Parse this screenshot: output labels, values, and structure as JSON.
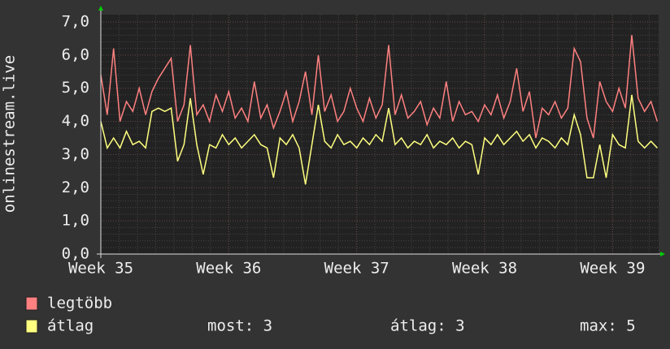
{
  "chart_data": {
    "type": "line",
    "y_label": "onlinestream.live",
    "x": [
      35,
      35.05,
      35.1,
      35.15,
      35.2,
      35.25,
      35.3,
      35.35,
      35.4,
      35.45,
      35.5,
      35.55,
      35.6,
      35.65,
      35.7,
      35.75,
      35.8,
      35.85,
      35.9,
      35.95,
      36,
      36.05,
      36.1,
      36.15,
      36.2,
      36.25,
      36.3,
      36.35,
      36.4,
      36.45,
      36.5,
      36.55,
      36.6,
      36.65,
      36.7,
      36.75,
      36.8,
      36.85,
      36.9,
      36.95,
      37,
      37.05,
      37.1,
      37.15,
      37.2,
      37.25,
      37.3,
      37.35,
      37.4,
      37.45,
      37.5,
      37.55,
      37.6,
      37.65,
      37.7,
      37.75,
      37.8,
      37.85,
      37.9,
      37.95,
      38,
      38.05,
      38.1,
      38.15,
      38.2,
      38.25,
      38.3,
      38.35,
      38.4,
      38.45,
      38.5,
      38.55,
      38.6,
      38.65,
      38.7,
      38.75,
      38.8,
      38.85,
      38.9,
      38.95,
      39,
      39.05,
      39.1,
      39.15,
      39.2,
      39.25,
      39.3,
      39.35
    ],
    "series": [
      {
        "name": "legtöbb",
        "color": "#ff8080",
        "values": [
          5.4,
          4.2,
          6.2,
          4.0,
          4.6,
          4.3,
          5.0,
          4.2,
          4.9,
          5.3,
          5.6,
          5.9,
          4.0,
          4.5,
          6.3,
          4.2,
          4.5,
          4.0,
          4.8,
          4.3,
          4.9,
          4.1,
          4.4,
          4.0,
          5.2,
          4.1,
          4.5,
          3.8,
          4.3,
          4.9,
          4.0,
          4.6,
          5.5,
          4.2,
          6.0,
          4.3,
          4.8,
          4.0,
          4.3,
          5.0,
          4.4,
          4.0,
          4.7,
          4.1,
          4.5,
          6.3,
          4.2,
          4.8,
          4.1,
          4.3,
          4.6,
          3.9,
          4.4,
          4.1,
          5.2,
          4.0,
          4.6,
          4.2,
          4.3,
          4.0,
          4.5,
          4.2,
          4.8,
          4.1,
          4.6,
          5.6,
          4.3,
          4.9,
          3.5,
          4.4,
          4.2,
          4.6,
          4.1,
          4.4,
          6.2,
          5.8,
          4.1,
          3.5,
          5.2,
          4.6,
          4.3,
          5.0,
          4.4,
          6.6,
          4.7,
          4.3,
          4.6,
          4.0
        ]
      },
      {
        "name": "átlag",
        "color": "#ffff80",
        "values": [
          4.0,
          3.2,
          3.5,
          3.2,
          3.7,
          3.3,
          3.4,
          3.2,
          4.3,
          4.4,
          4.3,
          4.4,
          2.8,
          3.3,
          4.7,
          3.3,
          2.4,
          3.3,
          3.2,
          3.6,
          3.3,
          3.5,
          3.2,
          3.4,
          3.6,
          3.3,
          3.2,
          2.3,
          3.5,
          3.3,
          3.6,
          3.2,
          2.1,
          3.3,
          4.5,
          3.4,
          3.2,
          3.6,
          3.3,
          3.4,
          3.2,
          3.5,
          3.3,
          3.6,
          3.4,
          4.4,
          3.3,
          3.5,
          3.2,
          3.4,
          3.3,
          3.6,
          3.2,
          3.4,
          3.3,
          3.5,
          3.2,
          3.4,
          3.3,
          2.4,
          3.5,
          3.3,
          3.6,
          3.3,
          3.5,
          3.7,
          3.4,
          3.6,
          3.2,
          3.5,
          3.4,
          3.2,
          3.5,
          3.3,
          4.2,
          3.6,
          2.3,
          2.3,
          3.3,
          2.3,
          3.6,
          3.3,
          3.2,
          4.8,
          3.4,
          3.2,
          3.4,
          3.2
        ]
      }
    ],
    "xlim": [
      35,
      39.36
    ],
    "xticks": [
      {
        "value": 35,
        "label": "Week 35"
      },
      {
        "value": 36,
        "label": "Week 36"
      },
      {
        "value": 37,
        "label": "Week 37"
      },
      {
        "value": 38,
        "label": "Week 38"
      },
      {
        "value": 39,
        "label": "Week 39"
      }
    ],
    "ylim": [
      0,
      7
    ],
    "yticks": [
      {
        "value": 0,
        "label": "0,0"
      },
      {
        "value": 1,
        "label": "1,0"
      },
      {
        "value": 2,
        "label": "2,0"
      },
      {
        "value": 3,
        "label": "3,0"
      },
      {
        "value": 4,
        "label": "4,0"
      },
      {
        "value": 5,
        "label": "5,0"
      },
      {
        "value": 6,
        "label": "6,0"
      },
      {
        "value": 7,
        "label": "7,0"
      }
    ],
    "grid": true,
    "stats": [
      "most: 3",
      "átlag: 3",
      "max: 5"
    ]
  }
}
